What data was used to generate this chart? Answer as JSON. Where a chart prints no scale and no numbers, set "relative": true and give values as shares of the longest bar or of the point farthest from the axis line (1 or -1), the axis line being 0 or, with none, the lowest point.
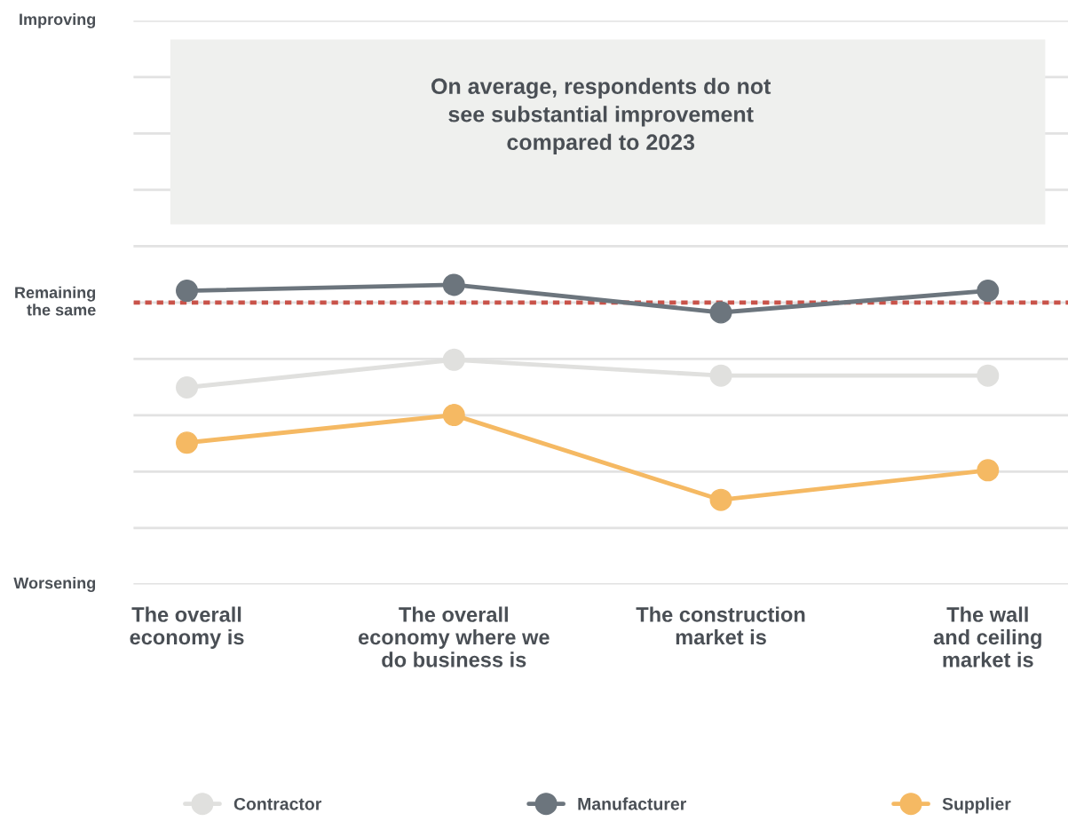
{
  "chart_data": {
    "type": "line",
    "relative": true,
    "categories": [
      "The overall\neconomy is",
      "The overall\neconomy where we\ndo business is",
      "The construction\nmarket is",
      "The wall\nand ceiling\nmarket is"
    ],
    "series": [
      {
        "name": "Contractor",
        "color": "#e0e0de",
        "values": [
          -0.43,
          -0.29,
          -0.37,
          -0.37
        ]
      },
      {
        "name": "Manufacturer",
        "color": "#6c757d",
        "values": [
          0.06,
          0.09,
          -0.05,
          0.06
        ]
      },
      {
        "name": "Supplier",
        "color": "#f5b963",
        "values": [
          -0.71,
          -0.57,
          -1,
          -0.85
        ]
      }
    ],
    "annotations": [
      "Improving",
      "Remaining\nthe same",
      "Worsening"
    ],
    "ref_lines": [
      {
        "axis": "y",
        "value": 0,
        "color": "#c9534a",
        "line_style": "dotted"
      }
    ],
    "bands": [
      {
        "axis": "y",
        "from": 0.4,
        "to": 1.33,
        "color": "#eff0ee",
        "label": "On average, respondents do not\nsee substantial improvement\ncompared to 2023"
      }
    ],
    "grid": "y",
    "legend": "bottom",
    "marker": "circle",
    "line_style": "solid"
  }
}
